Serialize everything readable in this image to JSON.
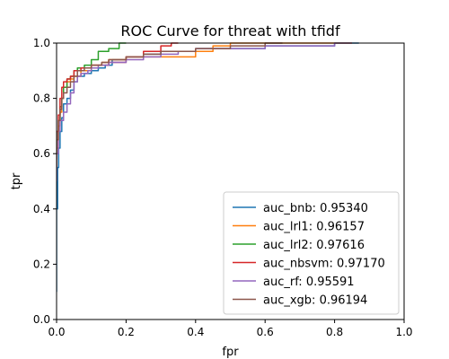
{
  "chart_data": {
    "type": "line",
    "title": "ROC Curve for threat with tfidf",
    "xlabel": "fpr",
    "ylabel": "tpr",
    "xlim": [
      0,
      1
    ],
    "ylim": [
      0,
      1
    ],
    "xticks": [
      "0.0",
      "0.2",
      "0.4",
      "0.6",
      "0.8",
      "1.0"
    ],
    "yticks": [
      "0.0",
      "0.2",
      "0.4",
      "0.6",
      "0.8",
      "1.0"
    ],
    "grid": false,
    "legend_position": "lower-right",
    "series": [
      {
        "name": "auc_bnb: 0.95340",
        "color": "#1f77b4",
        "points": [
          [
            0,
            0.1
          ],
          [
            0.003,
            0.4
          ],
          [
            0.006,
            0.55
          ],
          [
            0.01,
            0.62
          ],
          [
            0.015,
            0.68
          ],
          [
            0.02,
            0.73
          ],
          [
            0.03,
            0.78
          ],
          [
            0.04,
            0.8
          ],
          [
            0.05,
            0.83
          ],
          [
            0.06,
            0.86
          ],
          [
            0.08,
            0.88
          ],
          [
            0.1,
            0.89
          ],
          [
            0.12,
            0.9
          ],
          [
            0.14,
            0.91
          ],
          [
            0.16,
            0.92
          ],
          [
            0.2,
            0.94
          ],
          [
            0.25,
            0.95
          ],
          [
            0.3,
            0.96
          ],
          [
            0.4,
            0.97
          ],
          [
            0.5,
            0.98
          ],
          [
            0.6,
            0.98
          ],
          [
            0.7,
            0.99
          ],
          [
            0.8,
            0.99
          ],
          [
            0.87,
            1.0
          ]
        ]
      },
      {
        "name": "auc_lrl1: 0.96157",
        "color": "#ff7f0e",
        "points": [
          [
            0,
            0.55
          ],
          [
            0.005,
            0.62
          ],
          [
            0.01,
            0.7
          ],
          [
            0.015,
            0.75
          ],
          [
            0.02,
            0.8
          ],
          [
            0.03,
            0.84
          ],
          [
            0.04,
            0.86
          ],
          [
            0.05,
            0.87
          ],
          [
            0.07,
            0.88
          ],
          [
            0.1,
            0.9
          ],
          [
            0.13,
            0.92
          ],
          [
            0.15,
            0.93
          ],
          [
            0.2,
            0.94
          ],
          [
            0.25,
            0.95
          ],
          [
            0.3,
            0.95
          ],
          [
            0.4,
            0.95
          ],
          [
            0.45,
            0.97
          ],
          [
            0.5,
            0.99
          ],
          [
            0.55,
            1.0
          ],
          [
            0.6,
            1.0
          ],
          [
            0.7,
            1.0
          ],
          [
            0.8,
            1.0
          ],
          [
            0.85,
            1.0
          ]
        ]
      },
      {
        "name": "auc_lrl2: 0.97616",
        "color": "#2ca02c",
        "points": [
          [
            0,
            0.6
          ],
          [
            0.005,
            0.68
          ],
          [
            0.01,
            0.72
          ],
          [
            0.015,
            0.77
          ],
          [
            0.02,
            0.8
          ],
          [
            0.03,
            0.84
          ],
          [
            0.04,
            0.87
          ],
          [
            0.05,
            0.88
          ],
          [
            0.06,
            0.9
          ],
          [
            0.08,
            0.91
          ],
          [
            0.1,
            0.92
          ],
          [
            0.12,
            0.94
          ],
          [
            0.15,
            0.97
          ],
          [
            0.18,
            0.98
          ],
          [
            0.2,
            1.0
          ]
        ]
      },
      {
        "name": "auc_nbsvm: 0.97170",
        "color": "#d62728",
        "points": [
          [
            0,
            0.58
          ],
          [
            0.005,
            0.68
          ],
          [
            0.01,
            0.74
          ],
          [
            0.015,
            0.8
          ],
          [
            0.02,
            0.84
          ],
          [
            0.03,
            0.86
          ],
          [
            0.04,
            0.87
          ],
          [
            0.05,
            0.88
          ],
          [
            0.07,
            0.9
          ],
          [
            0.1,
            0.91
          ],
          [
            0.15,
            0.92
          ],
          [
            0.2,
            0.93
          ],
          [
            0.25,
            0.95
          ],
          [
            0.3,
            0.97
          ],
          [
            0.33,
            0.99
          ],
          [
            0.35,
            1.0
          ]
        ]
      },
      {
        "name": "auc_rf: 0.95591",
        "color": "#9467bd",
        "points": [
          [
            0,
            0.5
          ],
          [
            0.005,
            0.6
          ],
          [
            0.01,
            0.68
          ],
          [
            0.02,
            0.72
          ],
          [
            0.03,
            0.75
          ],
          [
            0.04,
            0.78
          ],
          [
            0.05,
            0.82
          ],
          [
            0.06,
            0.86
          ],
          [
            0.07,
            0.88
          ],
          [
            0.09,
            0.89
          ],
          [
            0.1,
            0.9
          ],
          [
            0.12,
            0.91
          ],
          [
            0.15,
            0.92
          ],
          [
            0.2,
            0.93
          ],
          [
            0.25,
            0.94
          ],
          [
            0.3,
            0.95
          ],
          [
            0.35,
            0.96
          ],
          [
            0.4,
            0.97
          ],
          [
            0.5,
            0.98
          ],
          [
            0.6,
            0.98
          ],
          [
            0.7,
            0.99
          ],
          [
            0.8,
            0.99
          ],
          [
            0.85,
            1.0
          ]
        ]
      },
      {
        "name": "auc_xgb: 0.96194",
        "color": "#8c564b",
        "points": [
          [
            0,
            0.55
          ],
          [
            0.005,
            0.65
          ],
          [
            0.01,
            0.72
          ],
          [
            0.015,
            0.76
          ],
          [
            0.02,
            0.8
          ],
          [
            0.03,
            0.82
          ],
          [
            0.04,
            0.84
          ],
          [
            0.05,
            0.86
          ],
          [
            0.06,
            0.88
          ],
          [
            0.08,
            0.9
          ],
          [
            0.1,
            0.91
          ],
          [
            0.13,
            0.92
          ],
          [
            0.15,
            0.93
          ],
          [
            0.2,
            0.94
          ],
          [
            0.25,
            0.95
          ],
          [
            0.3,
            0.96
          ],
          [
            0.4,
            0.97
          ],
          [
            0.5,
            0.98
          ],
          [
            0.6,
            0.99
          ],
          [
            0.65,
            1.0
          ]
        ]
      }
    ]
  }
}
